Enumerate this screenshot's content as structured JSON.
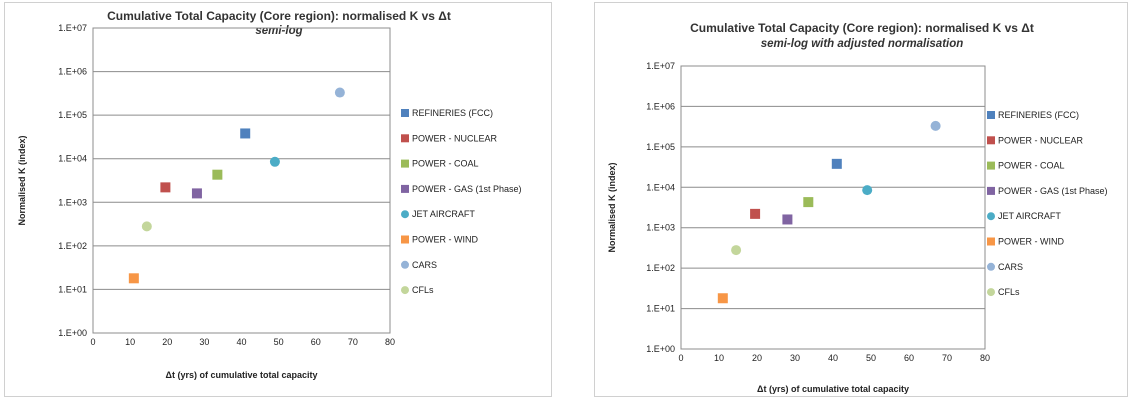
{
  "chart_data": [
    {
      "type": "scatter",
      "title": "Cumulative Total Capacity (Core region): normalised K vs Δt",
      "subtitle": "semi-log",
      "xlabel": "Δt (yrs) of cumulative total capacity",
      "ylabel": "Normalised K (index)",
      "xlim": [
        0,
        80
      ],
      "ylim": [
        1,
        10000000
      ],
      "yscale": "log",
      "grid": "horizontal",
      "legend_position": "right",
      "x_ticks": [
        "0",
        "10",
        "20",
        "30",
        "40",
        "50",
        "60",
        "70",
        "80"
      ],
      "y_ticks": [
        "1.E+00",
        "1.E+01",
        "1.E+02",
        "1.E+03",
        "1.E+04",
        "1.E+05",
        "1.E+06",
        "1.E+07"
      ],
      "series": [
        {
          "name": "REFINERIES (FCC)",
          "marker": "square",
          "color": "#4f81bd",
          "x": [
            41
          ],
          "y": [
            38000
          ]
        },
        {
          "name": "POWER - NUCLEAR",
          "marker": "square",
          "color": "#c0504d",
          "x": [
            19.5
          ],
          "y": [
            2200
          ]
        },
        {
          "name": "POWER - COAL",
          "marker": "square",
          "color": "#9bbb59",
          "x": [
            33.5
          ],
          "y": [
            4300
          ]
        },
        {
          "name": "POWER - GAS (1st Phase)",
          "marker": "square",
          "color": "#8064a2",
          "x": [
            28
          ],
          "y": [
            1600
          ]
        },
        {
          "name": "JET AIRCRAFT",
          "marker": "circle",
          "color": "#4bacc6",
          "x": [
            49
          ],
          "y": [
            8500
          ]
        },
        {
          "name": "POWER - WIND",
          "marker": "square",
          "color": "#f79646",
          "x": [
            11
          ],
          "y": [
            18
          ]
        },
        {
          "name": "CARS",
          "marker": "circle",
          "color": "#95b3d7",
          "x": [
            66.5
          ],
          "y": [
            330000
          ]
        },
        {
          "name": "CFLs",
          "marker": "circle",
          "color": "#c3d69b",
          "x": [
            14.5
          ],
          "y": [
            280
          ]
        }
      ]
    },
    {
      "type": "scatter",
      "title": "Cumulative Total Capacity (Core region): normalised K vs Δt",
      "subtitle": "semi-log with adjusted normalisation",
      "xlabel": "Δt (yrs) of cumulative total capacity",
      "ylabel": "Normalised K (index)",
      "xlim": [
        0,
        80
      ],
      "ylim": [
        1,
        10000000
      ],
      "yscale": "log",
      "grid": "horizontal",
      "legend_position": "right",
      "x_ticks": [
        "0",
        "10",
        "20",
        "30",
        "40",
        "50",
        "60",
        "70",
        "80"
      ],
      "y_ticks": [
        "1.E+00",
        "1.E+01",
        "1.E+02",
        "1.E+03",
        "1.E+04",
        "1.E+05",
        "1.E+06",
        "1.E+07"
      ],
      "series": [
        {
          "name": "REFINERIES (FCC)",
          "marker": "square",
          "color": "#4f81bd",
          "x": [
            41
          ],
          "y": [
            38000
          ]
        },
        {
          "name": "POWER - NUCLEAR",
          "marker": "square",
          "color": "#c0504d",
          "x": [
            19.5
          ],
          "y": [
            2200
          ]
        },
        {
          "name": "POWER - COAL",
          "marker": "square",
          "color": "#9bbb59",
          "x": [
            33.5
          ],
          "y": [
            4300
          ]
        },
        {
          "name": "POWER - GAS (1st Phase)",
          "marker": "square",
          "color": "#8064a2",
          "x": [
            28
          ],
          "y": [
            1600
          ]
        },
        {
          "name": "JET AIRCRAFT",
          "marker": "circle",
          "color": "#4bacc6",
          "x": [
            49
          ],
          "y": [
            8500
          ]
        },
        {
          "name": "POWER - WIND",
          "marker": "square",
          "color": "#f79646",
          "x": [
            11
          ],
          "y": [
            18
          ]
        },
        {
          "name": "CARS",
          "marker": "circle",
          "color": "#95b3d7",
          "x": [
            67
          ],
          "y": [
            330000
          ]
        },
        {
          "name": "CFLs",
          "marker": "circle",
          "color": "#c3d69b",
          "x": [
            14.5
          ],
          "y": [
            280
          ]
        }
      ]
    }
  ]
}
